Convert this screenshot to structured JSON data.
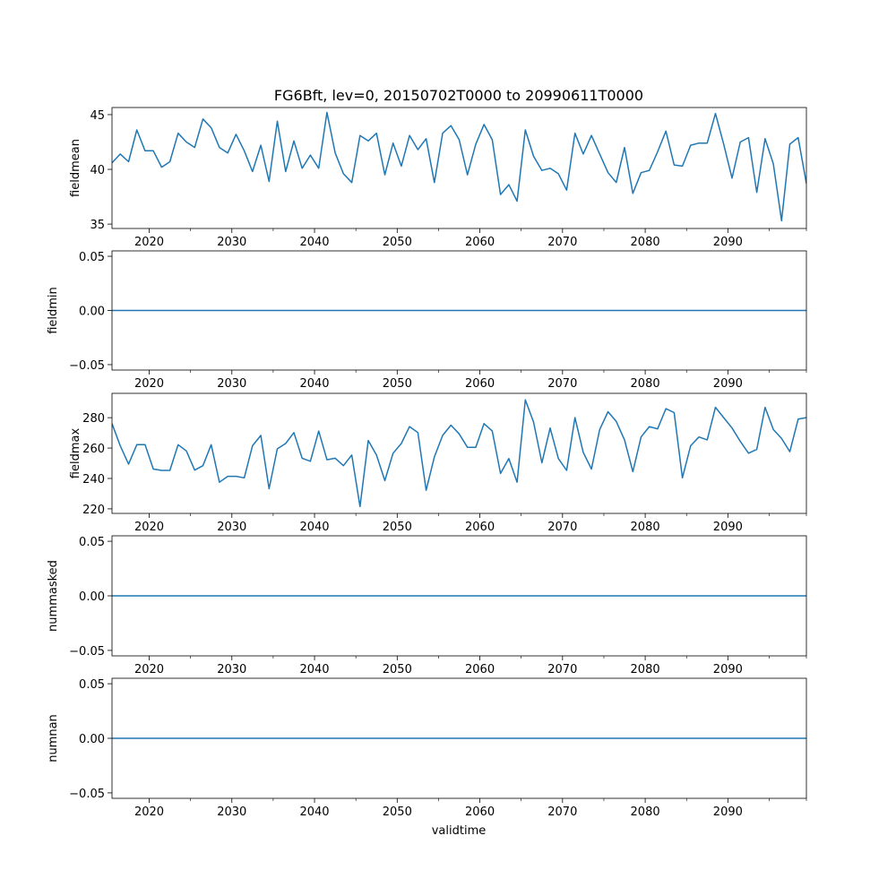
{
  "chart_data": [
    {
      "type": "line",
      "title": "FG6Bft, lev=0, 20150702T0000 to 20990611T0000",
      "ylabel": "fieldmean",
      "xlabel": "",
      "x_start": 2015.5,
      "x_step": 1,
      "xlim": [
        2015.5,
        2099.5
      ],
      "ylim": [
        34.6,
        45.65
      ],
      "yticks": [
        "35",
        "40",
        "45"
      ],
      "xticks": [
        "2020",
        "2030",
        "2040",
        "2050",
        "2060",
        "2070",
        "2080",
        "2090"
      ],
      "color": "#1f77b4",
      "values": [
        40.6,
        41.4,
        40.7,
        43.6,
        41.7,
        41.7,
        40.2,
        40.7,
        43.3,
        42.5,
        42.0,
        44.6,
        43.8,
        42.0,
        41.5,
        43.2,
        41.7,
        39.8,
        42.2,
        38.9,
        44.4,
        39.8,
        42.6,
        40.1,
        41.3,
        40.1,
        45.2,
        41.5,
        39.6,
        38.8,
        43.1,
        42.6,
        43.3,
        39.5,
        42.4,
        40.3,
        43.1,
        41.8,
        42.8,
        38.8,
        43.3,
        44.0,
        42.7,
        39.5,
        42.3,
        44.1,
        42.7,
        37.7,
        38.6,
        37.1,
        43.6,
        41.2,
        39.9,
        40.1,
        39.6,
        38.1,
        43.3,
        41.4,
        43.1,
        41.4,
        39.7,
        38.8,
        42.0,
        37.8,
        39.7,
        39.9,
        41.6,
        43.5,
        40.4,
        40.3,
        42.2,
        42.4,
        42.4,
        45.1,
        42.3,
        39.2,
        42.5,
        42.9,
        37.9,
        42.8,
        40.5,
        35.3,
        42.3,
        42.9,
        38.7
      ]
    },
    {
      "type": "line",
      "ylabel": "fieldmin",
      "xlim": [
        2015.5,
        2099.5
      ],
      "ylim": [
        -0.055,
        0.055
      ],
      "yticks": [
        "−0.05",
        "0.00",
        "0.05"
      ],
      "xticks": [
        "2020",
        "2030",
        "2040",
        "2050",
        "2060",
        "2070",
        "2080",
        "2090"
      ],
      "color": "#1f77b4",
      "constant": 0
    },
    {
      "type": "line",
      "ylabel": "fieldmax",
      "x_start": 2015.5,
      "x_step": 1,
      "xlim": [
        2015.5,
        2099.5
      ],
      "ylim": [
        217,
        296
      ],
      "yticks": [
        "220",
        "240",
        "260",
        "280"
      ],
      "xticks": [
        "2020",
        "2030",
        "2040",
        "2050",
        "2060",
        "2070",
        "2080",
        "2090"
      ],
      "color": "#1f77b4",
      "values": [
        276.1,
        261.5,
        249.4,
        262.2,
        262.2,
        246.2,
        245.3,
        245.3,
        262.2,
        258.1,
        245.5,
        248.4,
        262.2,
        237.5,
        241.4,
        241.4,
        240.4,
        261.5,
        268.3,
        233.2,
        259.5,
        263.0,
        270.2,
        253.3,
        251.3,
        271.2,
        252.3,
        253.3,
        248.4,
        255.4,
        221.5,
        265.0,
        255.4,
        238.6,
        256.6,
        263.0,
        274.1,
        270.2,
        232.2,
        254.2,
        268.3,
        275.1,
        269.3,
        260.5,
        260.5,
        276.1,
        271.2,
        243.3,
        253.1,
        237.5,
        291.7,
        277.1,
        250.3,
        273.2,
        253.1,
        245.3,
        280.0,
        257.2,
        246.2,
        272.2,
        283.9,
        277.5,
        265.4,
        244.5,
        267.3,
        274.1,
        272.6,
        285.9,
        283.3,
        240.4,
        261.5,
        267.3,
        265.4,
        286.8,
        280.0,
        273.2,
        264.4,
        256.6,
        259.1,
        286.8,
        272.2,
        266.3,
        257.6,
        279.0,
        280.0
      ]
    },
    {
      "type": "line",
      "ylabel": "nummasked",
      "xlim": [
        2015.5,
        2099.5
      ],
      "ylim": [
        -0.055,
        0.055
      ],
      "yticks": [
        "−0.05",
        "0.00",
        "0.05"
      ],
      "xticks": [
        "2020",
        "2030",
        "2040",
        "2050",
        "2060",
        "2070",
        "2080",
        "2090"
      ],
      "color": "#1f77b4",
      "constant": 0
    },
    {
      "type": "line",
      "ylabel": "numnan",
      "xlabel": "validtime",
      "xlim": [
        2015.5,
        2099.5
      ],
      "ylim": [
        -0.055,
        0.055
      ],
      "yticks": [
        "−0.05",
        "0.00",
        "0.05"
      ],
      "xticks": [
        "2020",
        "2030",
        "2040",
        "2050",
        "2060",
        "2070",
        "2080",
        "2090"
      ],
      "color": "#1f77b4",
      "constant": 0
    }
  ]
}
